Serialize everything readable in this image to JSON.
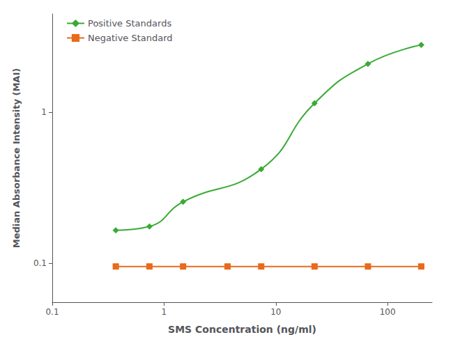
{
  "chart_data": {
    "type": "line",
    "title": "",
    "xlabel": "SMS Concentration (ng/ml)",
    "ylabel": "Median Absorbance Intensity (MAI)",
    "log": true,
    "xlim": [
      0.1,
      250
    ],
    "ylim": [
      0.055,
      4.5
    ],
    "xticks": [
      0.1,
      1,
      10,
      100
    ],
    "yticks": [
      0.1,
      1
    ],
    "grid": false,
    "legend": "upper left",
    "series": [
      {
        "name": "Positive Standards",
        "color": "#3aaa35",
        "marker": "diamond",
        "line_style": "smooth",
        "x": [
          0.37,
          0.74,
          1.48,
          7.4,
          22.2,
          66.7,
          200
        ],
        "values": [
          0.165,
          0.175,
          0.255,
          0.42,
          1.15,
          2.1,
          2.8
        ]
      },
      {
        "name": "Negative Standard",
        "color": "#e86a1a",
        "marker": "square",
        "line_style": "solid",
        "x": [
          0.37,
          0.74,
          1.48,
          3.7,
          7.4,
          22.2,
          66.7,
          200
        ],
        "values": [
          0.095,
          0.095,
          0.095,
          0.095,
          0.095,
          0.095,
          0.095,
          0.095
        ]
      }
    ]
  }
}
